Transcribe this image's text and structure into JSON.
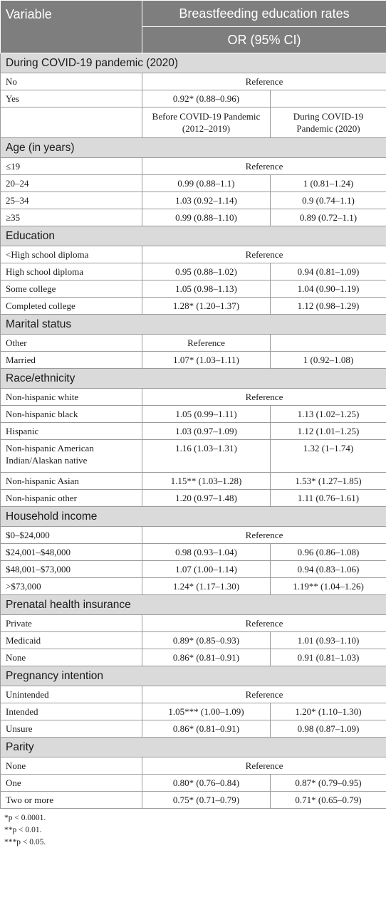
{
  "header": {
    "variable": "Variable",
    "title": "Breastfeeding education rates",
    "or": "OR (95% CI)"
  },
  "period": {
    "before": "Before COVID-19 Pandemic (2012–2019)",
    "during": "During COVID-19 Pandemic (2020)"
  },
  "covid": {
    "title": "During COVID-19 pandemic (2020)",
    "no": "No",
    "no_ref": "Reference",
    "yes": "Yes",
    "yes_val": "0.92* (0.88–0.96)"
  },
  "age": {
    "title": "Age (in years)",
    "rows": [
      {
        "label": "≤19",
        "ref": "Reference"
      },
      {
        "label": "20–24",
        "before": "0.99 (0.88–1.1)",
        "during": "1 (0.81–1.24)"
      },
      {
        "label": "25–34",
        "before": "1.03 (0.92–1.14)",
        "during": "0.9 (0.74–1.1)"
      },
      {
        "label": "≥35",
        "before": "0.99 (0.88–1.10)",
        "during": "0.89 (0.72–1.1)"
      }
    ]
  },
  "education": {
    "title": "Education",
    "rows": [
      {
        "label": "<High school diploma",
        "ref": "Reference"
      },
      {
        "label": "High school diploma",
        "before": "0.95 (0.88–1.02)",
        "during": "0.94 (0.81–1.09)"
      },
      {
        "label": "Some college",
        "before": "1.05 (0.98–1.13)",
        "during": "1.04 (0.90–1.19)"
      },
      {
        "label": "Completed college",
        "before": "1.28* (1.20–1.37)",
        "during": "1.12 (0.98–1.29)"
      }
    ]
  },
  "marital": {
    "title": "Marital status",
    "rows": [
      {
        "label": "Other",
        "ref": "Reference"
      },
      {
        "label": "Married",
        "before": "1.07* (1.03–1.11)",
        "during": "1 (0.92–1.08)"
      }
    ]
  },
  "race": {
    "title": "Race/ethnicity",
    "rows": [
      {
        "label": "Non-hispanic white",
        "ref": "Reference"
      },
      {
        "label": "Non-hispanic black",
        "before": "1.05 (0.99–1.11)",
        "during": "1.13 (1.02–1.25)"
      },
      {
        "label": "Hispanic",
        "before": "1.03 (0.97–1.09)",
        "during": "1.12 (1.01–1.25)"
      },
      {
        "label": "Non-hispanic American Indian/Alaskan native",
        "before": "1.16 (1.03–1.31)",
        "during": "1.32 (1–1.74)"
      },
      {
        "label": "Non-hispanic Asian",
        "before": "1.15** (1.03–1.28)",
        "during": "1.53* (1.27–1.85)"
      },
      {
        "label": "Non-hispanic other",
        "before": "1.20 (0.97–1.48)",
        "during": "1.11 (0.76–1.61)"
      }
    ]
  },
  "income": {
    "title": "Household income",
    "rows": [
      {
        "label": "$0–$24,000",
        "ref": "Reference"
      },
      {
        "label": "$24,001–$48,000",
        "before": "0.98 (0.93–1.04)",
        "during": "0.96 (0.86–1.08)"
      },
      {
        "label": "$48,001–$73,000",
        "before": "1.07 (1.00–1.14)",
        "during": "0.94 (0.83–1.06)"
      },
      {
        "label": ">$73,000",
        "before": "1.24* (1.17–1.30)",
        "during": "1.19** (1.04–1.26)"
      }
    ]
  },
  "insurance": {
    "title": "Prenatal health insurance",
    "rows": [
      {
        "label": "Private",
        "ref": "Reference"
      },
      {
        "label": "Medicaid",
        "before": "0.89* (0.85–0.93)",
        "during": "1.01 (0.93–1.10)"
      },
      {
        "label": "None",
        "before": "0.86* (0.81–0.91)",
        "during": "0.91 (0.81–1.03)"
      }
    ]
  },
  "intention": {
    "title": "Pregnancy intention",
    "rows": [
      {
        "label": "Unintended",
        "ref": "Reference"
      },
      {
        "label": "Intended",
        "before": "1.05*** (1.00–1.09)",
        "during": "1.20* (1.10–1.30)"
      },
      {
        "label": "Unsure",
        "before": "0.86* (0.81–0.91)",
        "during": "0.98 (0.87–1.09)"
      }
    ]
  },
  "parity": {
    "title": "Parity",
    "rows": [
      {
        "label": "None",
        "ref": "Reference"
      },
      {
        "label": "One",
        "before": "0.80* (0.76–0.84)",
        "during": "0.87* (0.79–0.95)"
      },
      {
        "label": "Two or more",
        "before": "0.75* (0.71–0.79)",
        "during": "0.71* (0.65–0.79)"
      }
    ]
  },
  "notes": [
    "*p < 0.0001.",
    "**p < 0.01.",
    "***p < 0.05."
  ]
}
